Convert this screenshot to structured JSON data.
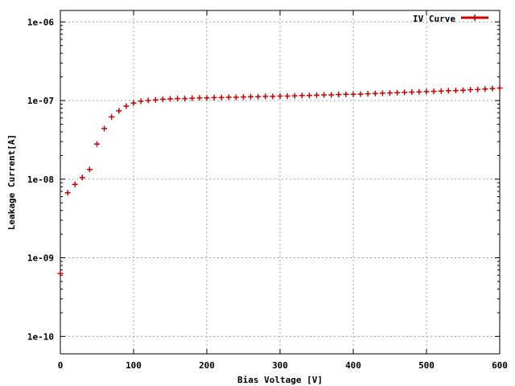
{
  "chart_data": {
    "type": "scatter",
    "title": "",
    "xlabel": "Bias Voltage [V]",
    "ylabel": "Leakage Current[A]",
    "xlim": [
      0,
      600
    ],
    "ylim": [
      6e-11,
      1.4e-06
    ],
    "yscale": "log",
    "grid": true,
    "legend_position": "top-right",
    "x_ticks": [
      {
        "value": 0,
        "label": "0"
      },
      {
        "value": 100,
        "label": "100"
      },
      {
        "value": 200,
        "label": "200"
      },
      {
        "value": 300,
        "label": "300"
      },
      {
        "value": 400,
        "label": "400"
      },
      {
        "value": 500,
        "label": "500"
      },
      {
        "value": 600,
        "label": "600"
      }
    ],
    "y_ticks": [
      {
        "value": 1e-06,
        "label": "1e-06"
      },
      {
        "value": 1e-07,
        "label": "1e-07"
      },
      {
        "value": 1e-08,
        "label": "1e-08"
      },
      {
        "value": 1e-09,
        "label": "1e-09"
      },
      {
        "value": 1e-10,
        "label": "1e-10"
      }
    ],
    "series": [
      {
        "name": "IV Curve",
        "color": "#cc0000",
        "marker": "plus",
        "x": [
          0,
          10,
          20,
          30,
          40,
          50,
          60,
          70,
          80,
          90,
          100,
          110,
          120,
          130,
          140,
          150,
          160,
          170,
          180,
          190,
          200,
          210,
          220,
          230,
          240,
          250,
          260,
          270,
          280,
          290,
          300,
          310,
          320,
          330,
          340,
          350,
          360,
          370,
          380,
          390,
          400,
          410,
          420,
          430,
          440,
          450,
          460,
          470,
          480,
          490,
          500,
          510,
          520,
          530,
          540,
          550,
          560,
          570,
          580,
          590,
          600
        ],
        "y": [
          6.3e-10,
          6.7e-09,
          8.6e-09,
          1.05e-08,
          1.33e-08,
          2.8e-08,
          4.4e-08,
          6.2e-08,
          7.4e-08,
          8.5e-08,
          9.3e-08,
          9.8e-08,
          1e-07,
          1.02e-07,
          1.04e-07,
          1.05e-07,
          1.06e-07,
          1.06e-07,
          1.07e-07,
          1.08e-07,
          1.08e-07,
          1.09e-07,
          1.09e-07,
          1.1e-07,
          1.1e-07,
          1.11e-07,
          1.12e-07,
          1.12e-07,
          1.13e-07,
          1.13e-07,
          1.14e-07,
          1.14e-07,
          1.15e-07,
          1.16e-07,
          1.16e-07,
          1.17e-07,
          1.18e-07,
          1.18e-07,
          1.19e-07,
          1.2e-07,
          1.2e-07,
          1.21e-07,
          1.22e-07,
          1.23e-07,
          1.24e-07,
          1.25e-07,
          1.26e-07,
          1.27e-07,
          1.28e-07,
          1.29e-07,
          1.3e-07,
          1.31e-07,
          1.32e-07,
          1.33e-07,
          1.34e-07,
          1.35e-07,
          1.37e-07,
          1.38e-07,
          1.4e-07,
          1.42e-07,
          1.44e-07
        ]
      }
    ]
  }
}
